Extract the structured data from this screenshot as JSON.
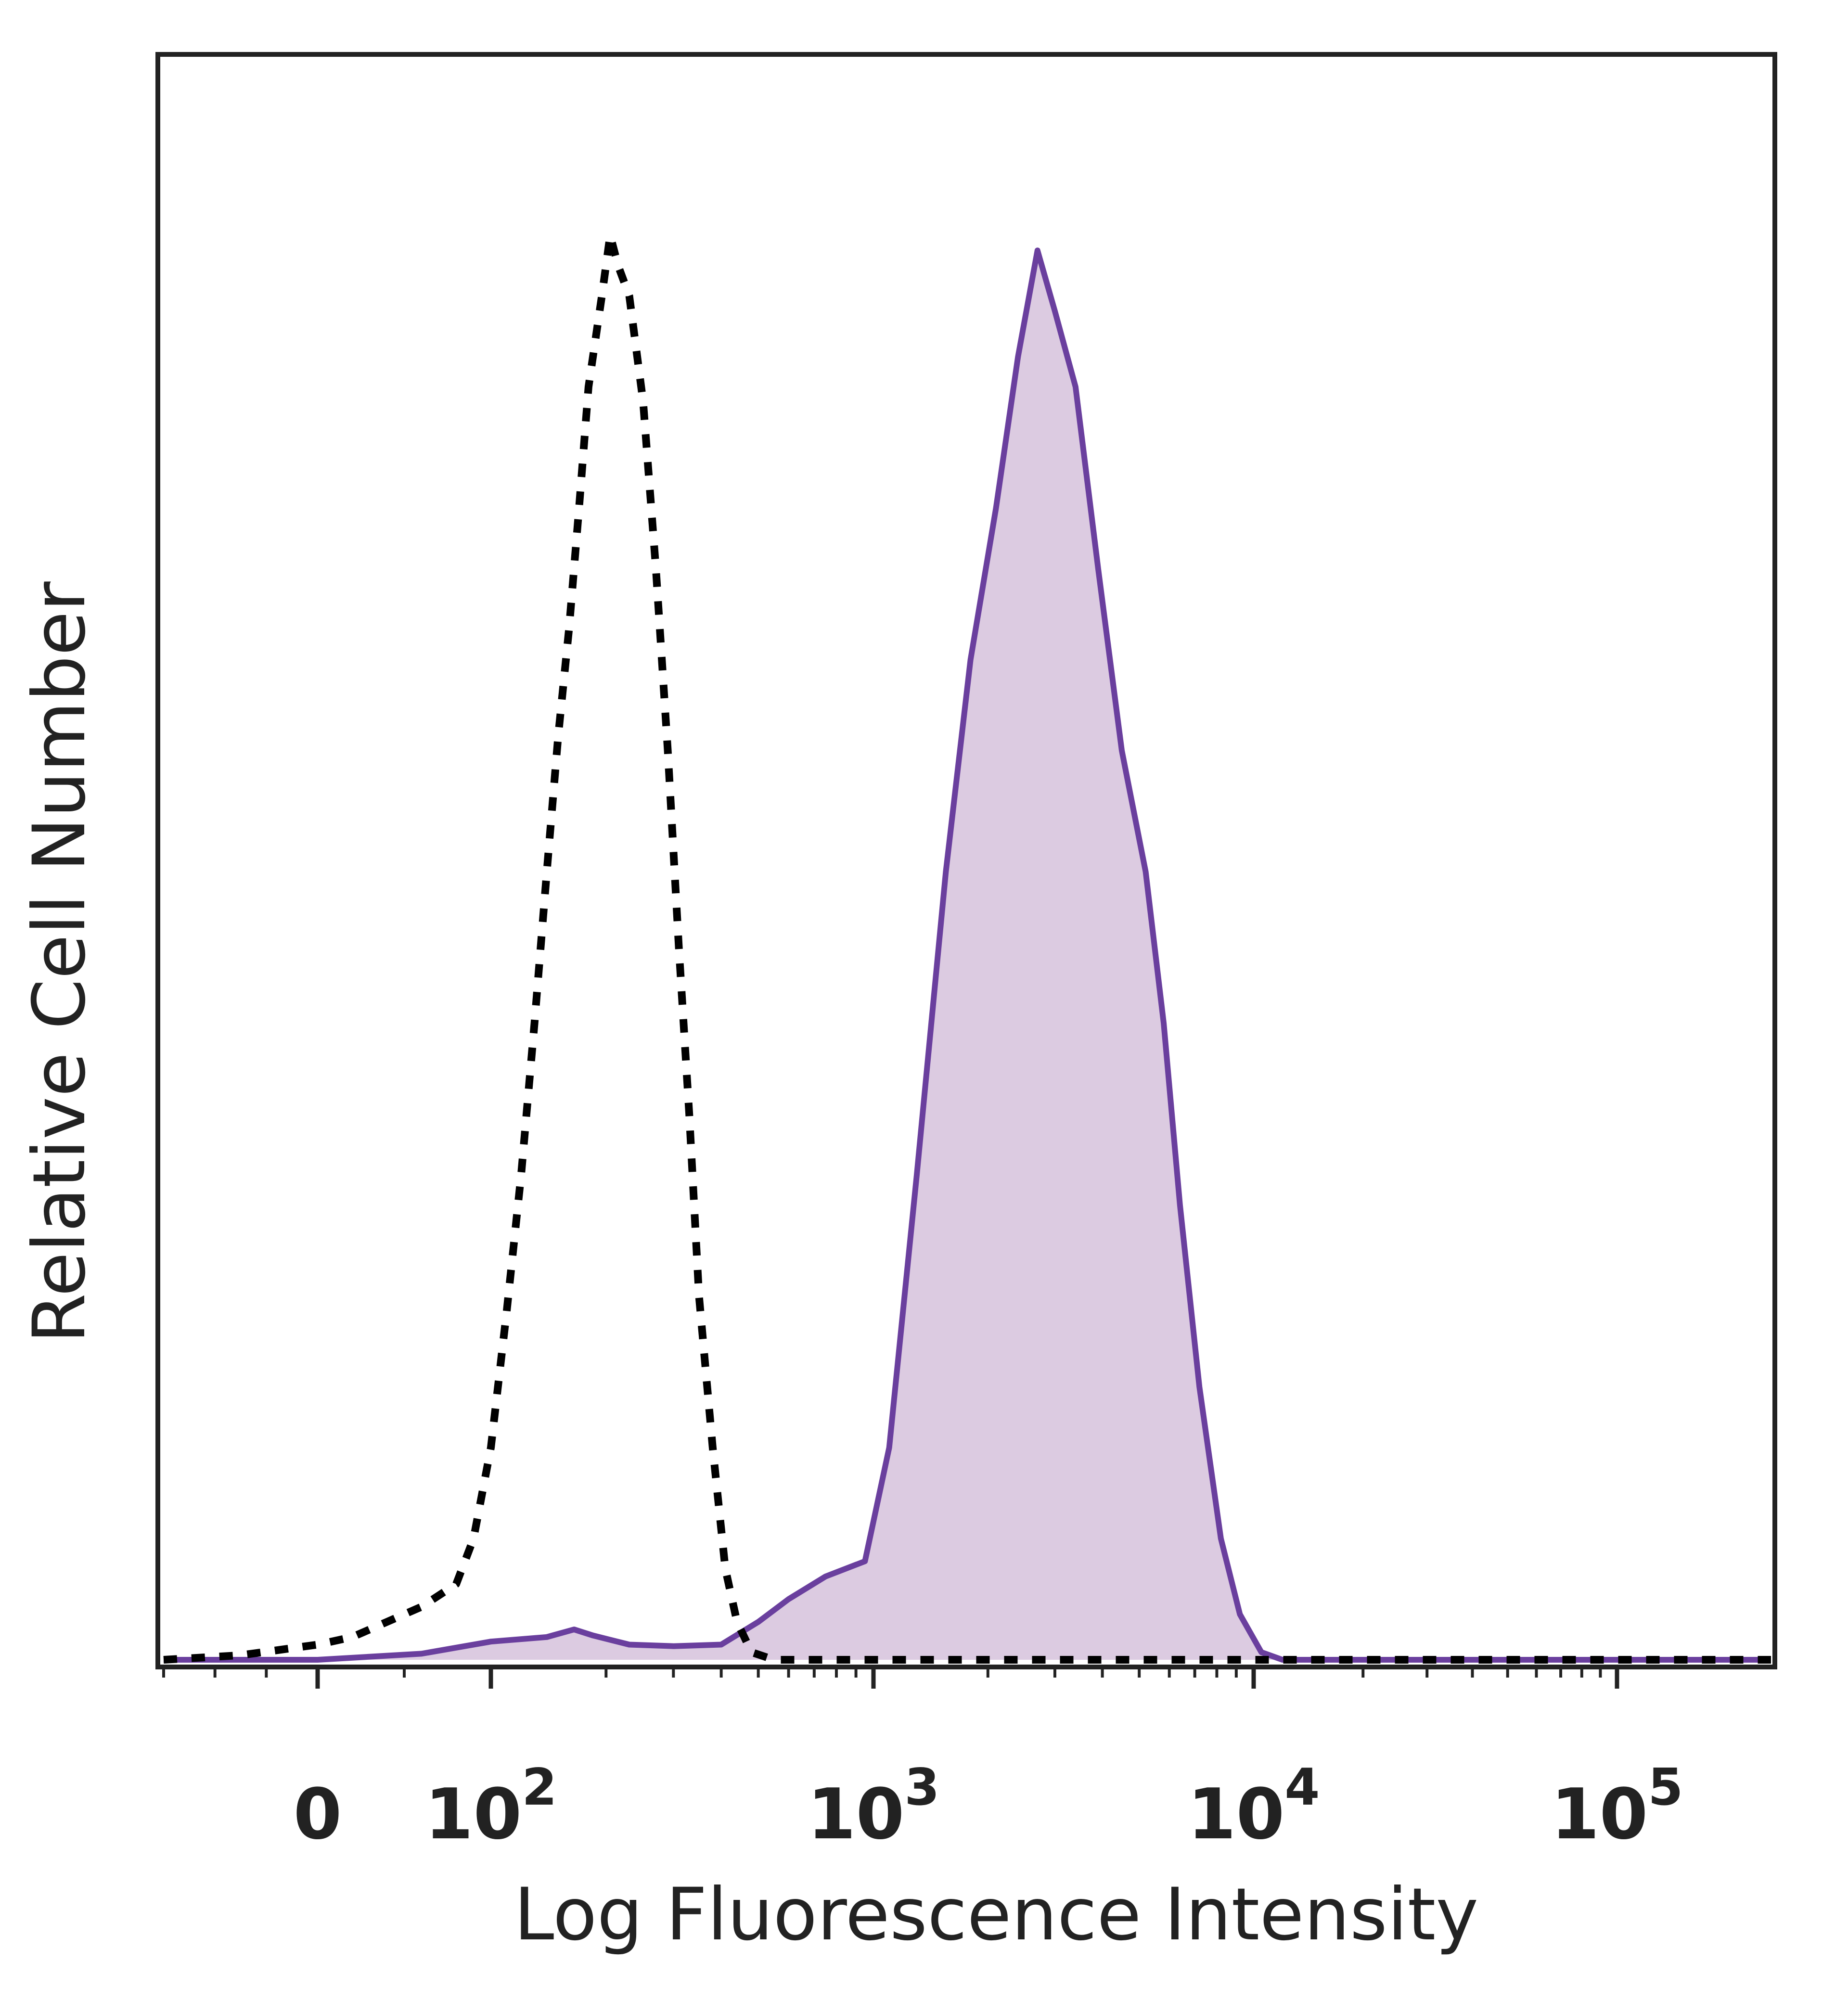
{
  "chart_data": {
    "type": "line",
    "title": "",
    "xlabel": "Log Fluorescence Intensity",
    "ylabel": "Relative Cell Number",
    "x_scale": "biexponential",
    "x_ticks": [
      {
        "value": 0,
        "base": "0",
        "exp": ""
      },
      {
        "value": 100,
        "base": "10",
        "exp": "2"
      },
      {
        "value": 1000,
        "base": "10",
        "exp": "3"
      },
      {
        "value": 10000,
        "base": "10",
        "exp": "4"
      },
      {
        "value": 100000,
        "base": "10",
        "exp": "5"
      }
    ],
    "xlim": [
      -300,
      250000
    ],
    "ylim": [
      0,
      100
    ],
    "grid": false,
    "legend": "none",
    "series": [
      {
        "style": "dotted",
        "color": "#000000",
        "fill": "none",
        "points": [
          [
            -300,
            0
          ],
          [
            -150,
            0.3
          ],
          [
            0,
            1
          ],
          [
            20,
            1.5
          ],
          [
            40,
            2.5
          ],
          [
            60,
            3.5
          ],
          [
            80,
            5
          ],
          [
            90,
            8
          ],
          [
            100,
            14
          ],
          [
            110,
            23
          ],
          [
            120,
            32
          ],
          [
            130,
            42
          ],
          [
            140,
            52
          ],
          [
            150,
            61
          ],
          [
            160,
            68
          ],
          [
            170,
            76
          ],
          [
            180,
            84
          ],
          [
            195,
            90
          ],
          [
            205,
            94
          ],
          [
            215,
            92
          ],
          [
            230,
            90
          ],
          [
            250,
            83
          ],
          [
            270,
            72
          ],
          [
            290,
            60
          ],
          [
            310,
            47
          ],
          [
            330,
            36
          ],
          [
            350,
            24
          ],
          [
            380,
            14
          ],
          [
            410,
            6
          ],
          [
            440,
            2.5
          ],
          [
            480,
            0.5
          ],
          [
            550,
            0
          ],
          [
            1000,
            0
          ],
          [
            10000,
            0
          ],
          [
            250000,
            0
          ]
        ]
      },
      {
        "style": "solid",
        "color": "#6a3f9e",
        "fill": "#dccbe1",
        "points": [
          [
            -300,
            0
          ],
          [
            0,
            0
          ],
          [
            60,
            0.4
          ],
          [
            100,
            1.2
          ],
          [
            140,
            1.5
          ],
          [
            165,
            2
          ],
          [
            185,
            1.6
          ],
          [
            230,
            1
          ],
          [
            300,
            0.9
          ],
          [
            400,
            1
          ],
          [
            500,
            2.5
          ],
          [
            600,
            4
          ],
          [
            750,
            5.5
          ],
          [
            950,
            6.5
          ],
          [
            1100,
            14
          ],
          [
            1300,
            32
          ],
          [
            1550,
            52
          ],
          [
            1800,
            66
          ],
          [
            2100,
            76
          ],
          [
            2400,
            86
          ],
          [
            2700,
            93
          ],
          [
            3000,
            89
          ],
          [
            3400,
            84
          ],
          [
            3900,
            72
          ],
          [
            4500,
            60
          ],
          [
            5200,
            52
          ],
          [
            5800,
            42
          ],
          [
            6400,
            30
          ],
          [
            7200,
            18
          ],
          [
            8200,
            8
          ],
          [
            9200,
            3
          ],
          [
            10500,
            0.5
          ],
          [
            12000,
            0
          ],
          [
            50000,
            0
          ],
          [
            250000,
            0
          ]
        ]
      }
    ]
  }
}
